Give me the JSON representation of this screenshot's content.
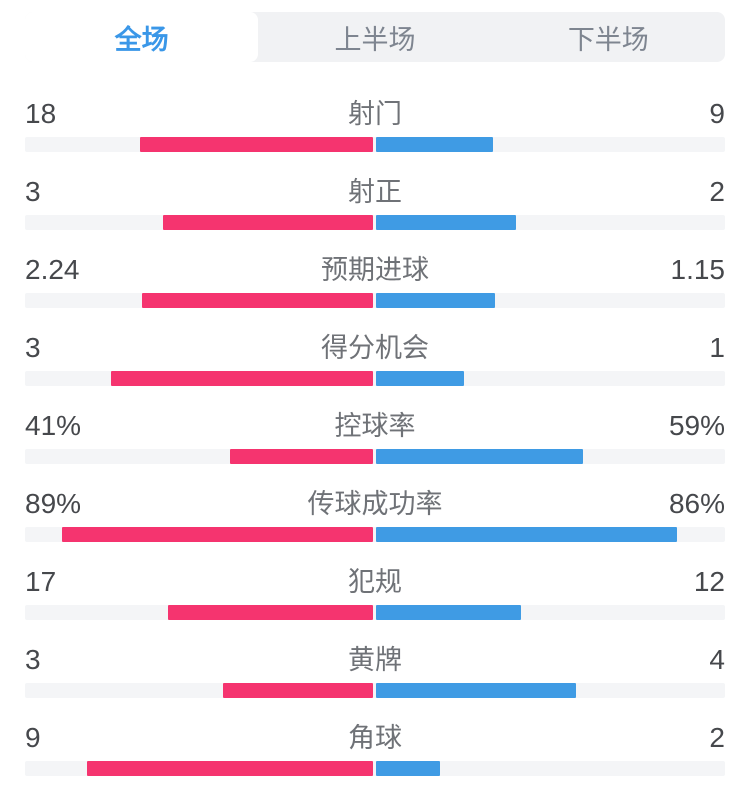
{
  "tabs": [
    {
      "label": "全场",
      "active": true
    },
    {
      "label": "上半场",
      "active": false
    },
    {
      "label": "下半场",
      "active": false
    }
  ],
  "colors": {
    "accent_blue_text": "#3a97e8",
    "inactive_tab_text": "#7e8590",
    "tab_bar_background": "#f1f2f4",
    "track_background": "#f4f5f7",
    "home_bar": "#f5346f",
    "away_bar": "#3f9be4",
    "value_text": "#46484c",
    "label_text": "#6f7277"
  },
  "chart_data": {
    "type": "bar",
    "layout": "mirrored-horizontal-pairs-from-center",
    "left_color": "#f5346f",
    "right_color": "#3f9be4",
    "categories": [
      "射门",
      "射正",
      "预期进球",
      "得分机会",
      "控球率",
      "传球成功率",
      "犯规",
      "黄牌",
      "角球"
    ],
    "series": [
      {
        "name": "home",
        "values": [
          18,
          3,
          2.24,
          3,
          "41%",
          "89%",
          17,
          3,
          9
        ]
      },
      {
        "name": "away",
        "values": [
          9,
          2,
          1.15,
          1,
          "59%",
          "86%",
          12,
          4,
          2
        ]
      }
    ],
    "rows": [
      {
        "label": "射门",
        "left_value": "18",
        "right_value": "9",
        "left_pct": 66.67,
        "right_pct": 33.33
      },
      {
        "label": "射正",
        "left_value": "3",
        "right_value": "2",
        "left_pct": 60.0,
        "right_pct": 40.0
      },
      {
        "label": "预期进球",
        "left_value": "2.24",
        "right_value": "1.15",
        "left_pct": 66.08,
        "right_pct": 33.92
      },
      {
        "label": "得分机会",
        "left_value": "3",
        "right_value": "1",
        "left_pct": 75.0,
        "right_pct": 25.0
      },
      {
        "label": "控球率",
        "left_value": "41%",
        "right_value": "59%",
        "left_pct": 41.0,
        "right_pct": 59.0
      },
      {
        "label": "传球成功率",
        "left_value": "89%",
        "right_value": "86%",
        "left_pct": 89.0,
        "right_pct": 86.0
      },
      {
        "label": "犯规",
        "left_value": "17",
        "right_value": "12",
        "left_pct": 58.62,
        "right_pct": 41.38
      },
      {
        "label": "黄牌",
        "left_value": "3",
        "right_value": "4",
        "left_pct": 42.86,
        "right_pct": 57.14
      },
      {
        "label": "角球",
        "left_value": "9",
        "right_value": "2",
        "left_pct": 81.82,
        "right_pct": 18.18
      }
    ]
  }
}
